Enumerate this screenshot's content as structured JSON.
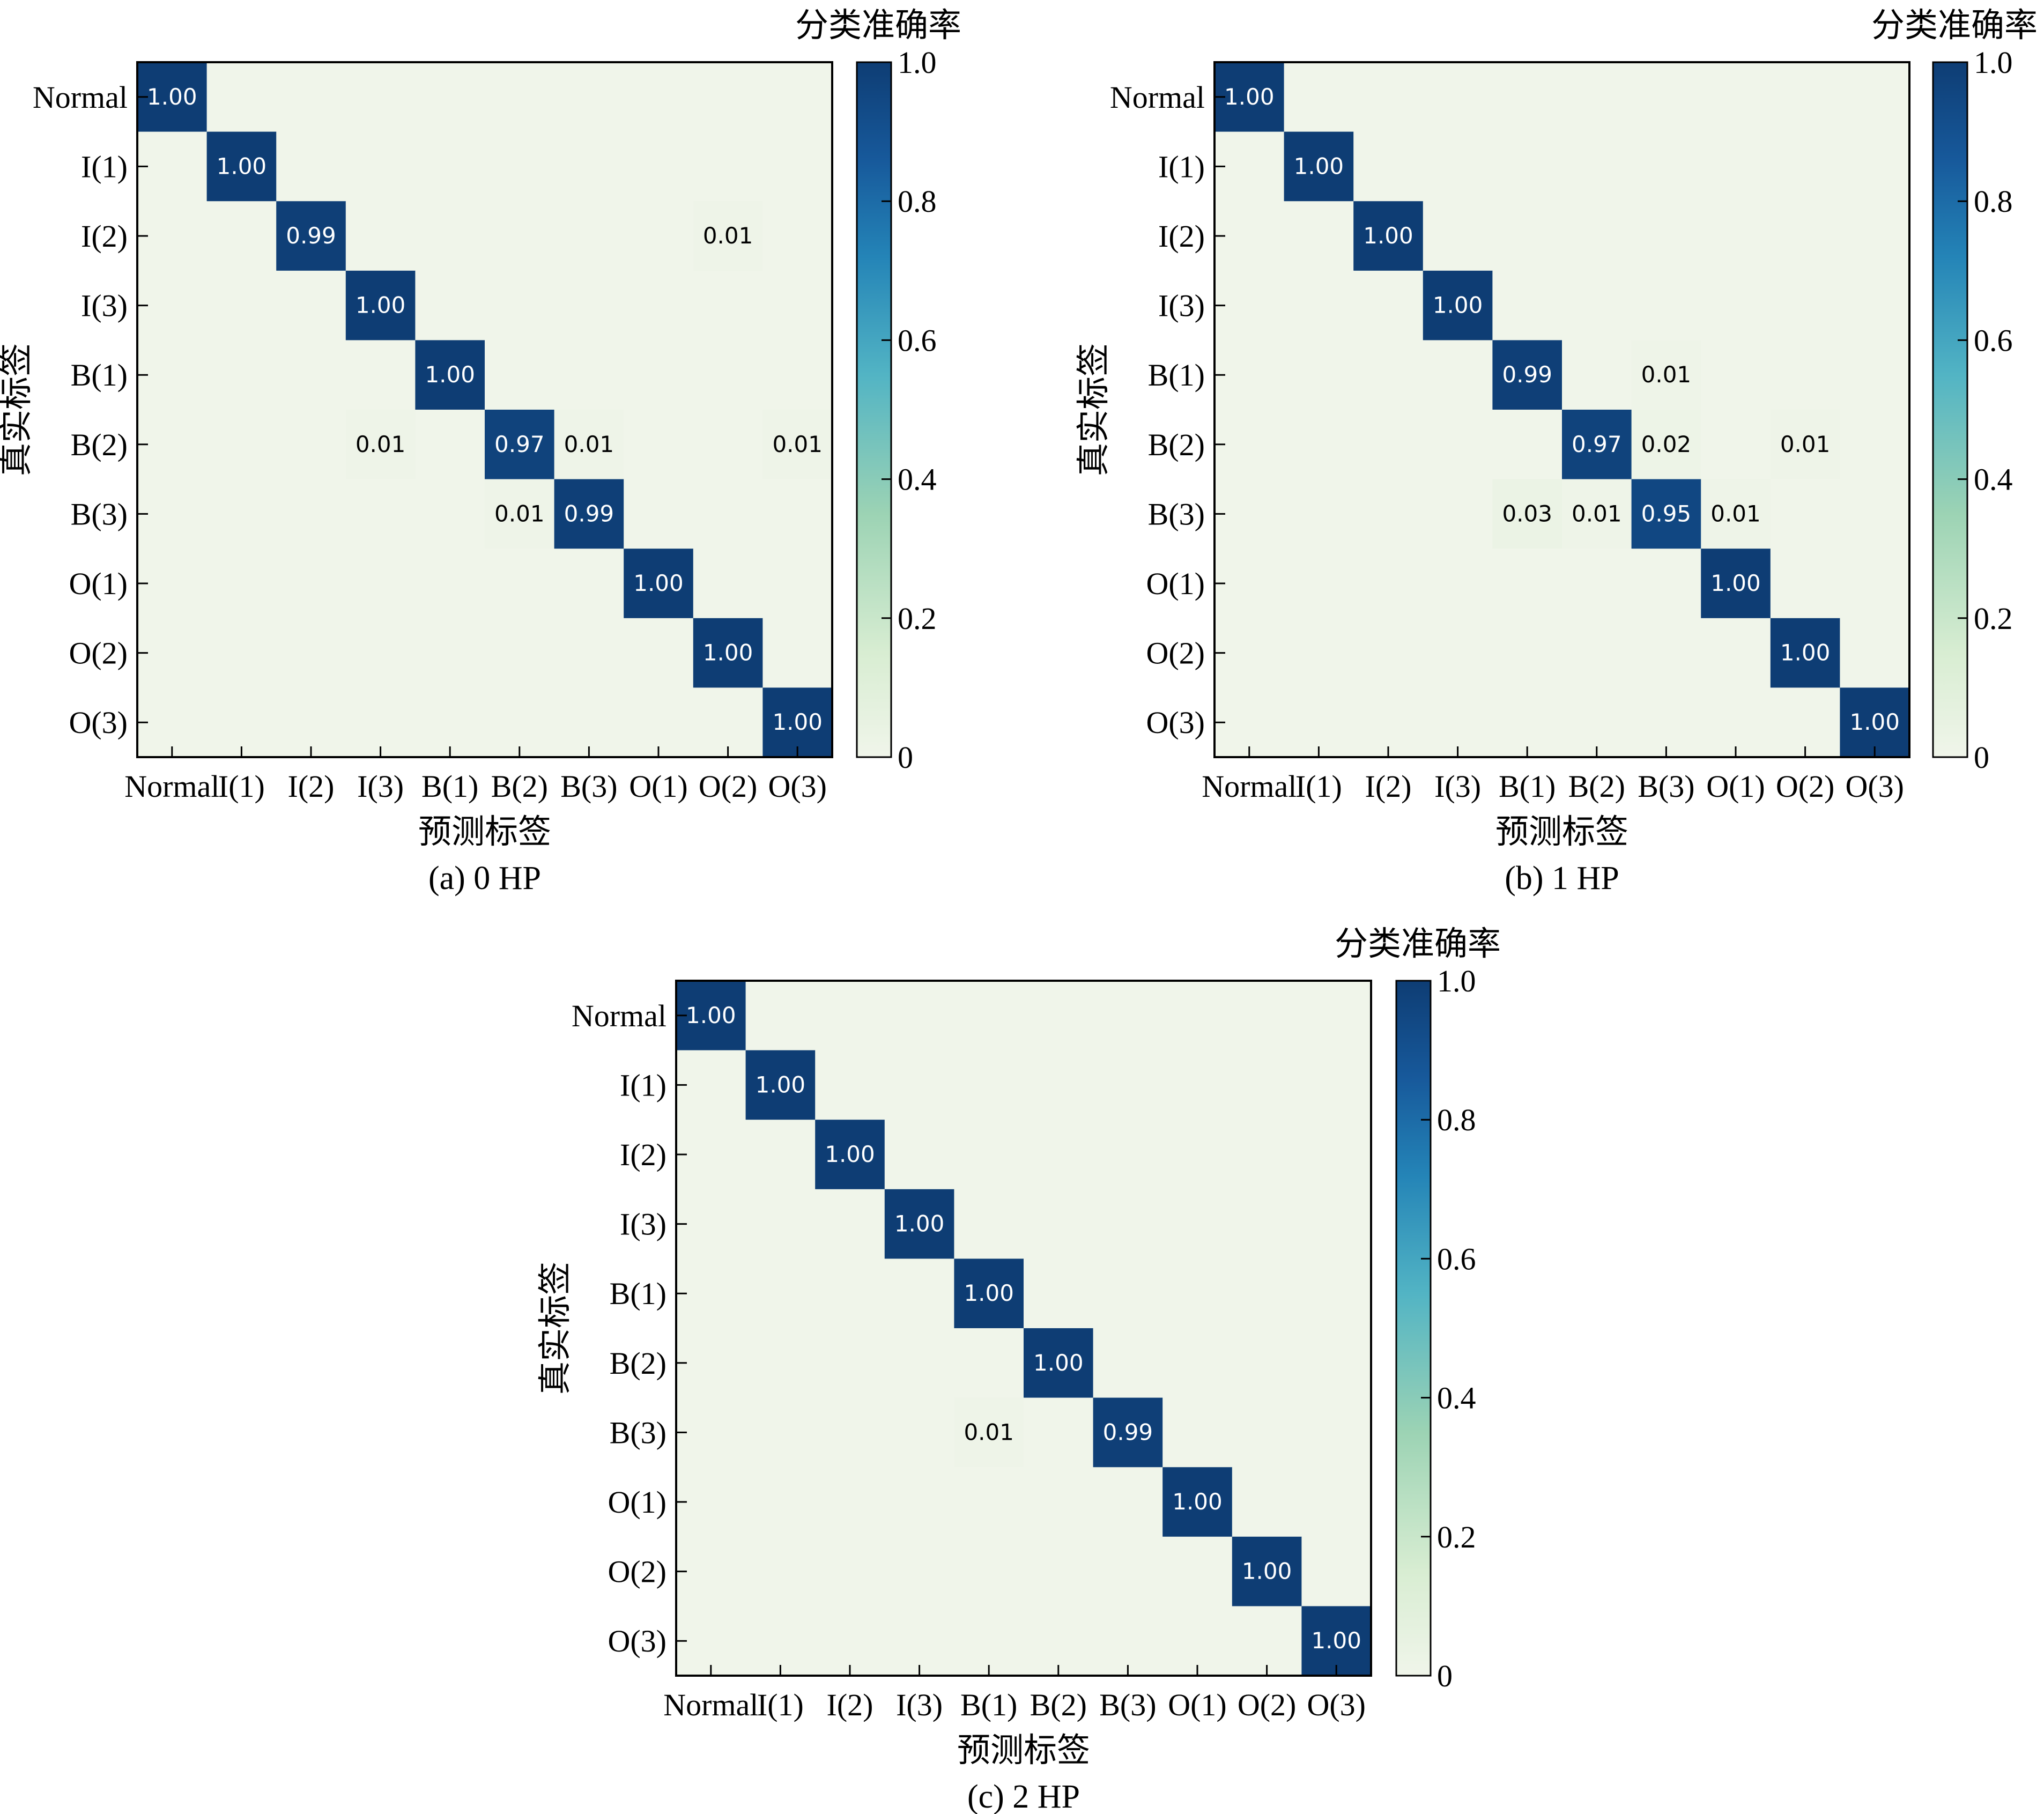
{
  "chart_data": [
    {
      "type": "heatmap",
      "panel_label": "(a)  0 HP",
      "xlabel": "预测标签",
      "ylabel": "真实标签",
      "colorbar_label": "分类准确率",
      "colorbar_ticks": [
        "0",
        "0.2",
        "0.4",
        "0.6",
        "0.8",
        "1.0"
      ],
      "vmin": 0,
      "vmax": 1,
      "x_categories": [
        "Normal",
        "I(1)",
        "I(2)",
        "I(3)",
        "B(1)",
        "B(2)",
        "B(3)",
        "O(1)",
        "O(2)",
        "O(3)"
      ],
      "y_categories": [
        "Normal",
        "I(1)",
        "I(2)",
        "I(3)",
        "B(1)",
        "B(2)",
        "B(3)",
        "O(1)",
        "O(2)",
        "O(3)"
      ],
      "values": [
        [
          1.0,
          0,
          0,
          0,
          0,
          0,
          0,
          0,
          0,
          0
        ],
        [
          0,
          1.0,
          0,
          0,
          0,
          0,
          0,
          0,
          0,
          0
        ],
        [
          0,
          0,
          0.99,
          0,
          0,
          0,
          0,
          0,
          0.01,
          0
        ],
        [
          0,
          0,
          0,
          1.0,
          0,
          0,
          0,
          0,
          0,
          0
        ],
        [
          0,
          0,
          0,
          0,
          1.0,
          0,
          0,
          0,
          0,
          0
        ],
        [
          0,
          0,
          0,
          0.01,
          0,
          0.97,
          0.01,
          0,
          0,
          0.01
        ],
        [
          0,
          0,
          0,
          0,
          0,
          0.01,
          0.99,
          0,
          0,
          0
        ],
        [
          0,
          0,
          0,
          0,
          0,
          0,
          0,
          1.0,
          0,
          0
        ],
        [
          0,
          0,
          0,
          0,
          0,
          0,
          0,
          0,
          1.0,
          0
        ],
        [
          0,
          0,
          0,
          0,
          0,
          0,
          0,
          0,
          0,
          1.0
        ]
      ],
      "value_labels": [
        [
          "1.00",
          "",
          "",
          "",
          "",
          "",
          "",
          "",
          "",
          ""
        ],
        [
          "",
          "1.00",
          "",
          "",
          "",
          "",
          "",
          "",
          "",
          ""
        ],
        [
          "",
          "",
          "0.99",
          "",
          "",
          "",
          "",
          "",
          "0.01",
          ""
        ],
        [
          "",
          "",
          "",
          "1.00",
          "",
          "",
          "",
          "",
          "",
          ""
        ],
        [
          "",
          "",
          "",
          "",
          "1.00",
          "",
          "",
          "",
          "",
          ""
        ],
        [
          "",
          "",
          "",
          "0.01",
          "",
          "0.97",
          "0.01",
          "",
          "",
          "0.01"
        ],
        [
          "",
          "",
          "",
          "",
          "",
          "0.01",
          "0.99",
          "",
          "",
          ""
        ],
        [
          "",
          "",
          "",
          "",
          "",
          "",
          "",
          "1.00",
          "",
          ""
        ],
        [
          "",
          "",
          "",
          "",
          "",
          "",
          "",
          "",
          "1.00",
          ""
        ],
        [
          "",
          "",
          "",
          "",
          "",
          "",
          "",
          "",
          "",
          "1.00"
        ]
      ]
    },
    {
      "type": "heatmap",
      "panel_label": "(b)  1 HP",
      "xlabel": "预测标签",
      "ylabel": "真实标签",
      "colorbar_label": "分类准确率",
      "colorbar_ticks": [
        "0",
        "0.2",
        "0.4",
        "0.6",
        "0.8",
        "1.0"
      ],
      "vmin": 0,
      "vmax": 1,
      "x_categories": [
        "Normal",
        "I(1)",
        "I(2)",
        "I(3)",
        "B(1)",
        "B(2)",
        "B(3)",
        "O(1)",
        "O(2)",
        "O(3)"
      ],
      "y_categories": [
        "Normal",
        "I(1)",
        "I(2)",
        "I(3)",
        "B(1)",
        "B(2)",
        "B(3)",
        "O(1)",
        "O(2)",
        "O(3)"
      ],
      "values": [
        [
          1.0,
          0,
          0,
          0,
          0,
          0,
          0,
          0,
          0,
          0
        ],
        [
          0,
          1.0,
          0,
          0,
          0,
          0,
          0,
          0,
          0,
          0
        ],
        [
          0,
          0,
          1.0,
          0,
          0,
          0,
          0,
          0,
          0,
          0
        ],
        [
          0,
          0,
          0,
          1.0,
          0,
          0,
          0,
          0,
          0,
          0
        ],
        [
          0,
          0,
          0,
          0,
          0.99,
          0,
          0.01,
          0,
          0,
          0
        ],
        [
          0,
          0,
          0,
          0,
          0,
          0.97,
          0.02,
          0,
          0.01,
          0
        ],
        [
          0,
          0,
          0,
          0,
          0.03,
          0.01,
          0.95,
          0.01,
          0,
          0
        ],
        [
          0,
          0,
          0,
          0,
          0,
          0,
          0,
          1.0,
          0,
          0
        ],
        [
          0,
          0,
          0,
          0,
          0,
          0,
          0,
          0,
          1.0,
          0
        ],
        [
          0,
          0,
          0,
          0,
          0,
          0,
          0,
          0,
          0,
          1.0
        ]
      ],
      "value_labels": [
        [
          "1.00",
          "",
          "",
          "",
          "",
          "",
          "",
          "",
          "",
          ""
        ],
        [
          "",
          "1.00",
          "",
          "",
          "",
          "",
          "",
          "",
          "",
          ""
        ],
        [
          "",
          "",
          "1.00",
          "",
          "",
          "",
          "",
          "",
          "",
          ""
        ],
        [
          "",
          "",
          "",
          "1.00",
          "",
          "",
          "",
          "",
          "",
          ""
        ],
        [
          "",
          "",
          "",
          "",
          "0.99",
          "",
          "0.01",
          "",
          "",
          ""
        ],
        [
          "",
          "",
          "",
          "",
          "",
          "0.97",
          "0.02",
          "",
          "0.01",
          ""
        ],
        [
          "",
          "",
          "",
          "",
          "0.03",
          "0.01",
          "0.95",
          "0.01",
          "",
          ""
        ],
        [
          "",
          "",
          "",
          "",
          "",
          "",
          "",
          "1.00",
          "",
          ""
        ],
        [
          "",
          "",
          "",
          "",
          "",
          "",
          "",
          "",
          "1.00",
          ""
        ],
        [
          "",
          "",
          "",
          "",
          "",
          "",
          "",
          "",
          "",
          "1.00"
        ]
      ]
    },
    {
      "type": "heatmap",
      "panel_label": "(c)  2 HP",
      "xlabel": "预测标签",
      "ylabel": "真实标签",
      "colorbar_label": "分类准确率",
      "colorbar_ticks": [
        "0",
        "0.2",
        "0.4",
        "0.6",
        "0.8",
        "1.0"
      ],
      "vmin": 0,
      "vmax": 1,
      "x_categories": [
        "Normal",
        "I(1)",
        "I(2)",
        "I(3)",
        "B(1)",
        "B(2)",
        "B(3)",
        "O(1)",
        "O(2)",
        "O(3)"
      ],
      "y_categories": [
        "Normal",
        "I(1)",
        "I(2)",
        "I(3)",
        "B(1)",
        "B(2)",
        "B(3)",
        "O(1)",
        "O(2)",
        "O(3)"
      ],
      "values": [
        [
          1.0,
          0,
          0,
          0,
          0,
          0,
          0,
          0,
          0,
          0
        ],
        [
          0,
          1.0,
          0,
          0,
          0,
          0,
          0,
          0,
          0,
          0
        ],
        [
          0,
          0,
          1.0,
          0,
          0,
          0,
          0,
          0,
          0,
          0
        ],
        [
          0,
          0,
          0,
          1.0,
          0,
          0,
          0,
          0,
          0,
          0
        ],
        [
          0,
          0,
          0,
          0,
          1.0,
          0,
          0,
          0,
          0,
          0
        ],
        [
          0,
          0,
          0,
          0,
          0,
          1.0,
          0,
          0,
          0,
          0
        ],
        [
          0,
          0,
          0,
          0,
          0.01,
          0,
          0.99,
          0,
          0,
          0
        ],
        [
          0,
          0,
          0,
          0,
          0,
          0,
          0,
          1.0,
          0,
          0
        ],
        [
          0,
          0,
          0,
          0,
          0,
          0,
          0,
          0,
          1.0,
          0
        ],
        [
          0,
          0,
          0,
          0,
          0,
          0,
          0,
          0,
          0,
          1.0
        ]
      ],
      "value_labels": [
        [
          "1.00",
          "",
          "",
          "",
          "",
          "",
          "",
          "",
          "",
          ""
        ],
        [
          "",
          "1.00",
          "",
          "",
          "",
          "",
          "",
          "",
          "",
          ""
        ],
        [
          "",
          "",
          "1.00",
          "",
          "",
          "",
          "",
          "",
          "",
          ""
        ],
        [
          "",
          "",
          "",
          "1.00",
          "",
          "",
          "",
          "",
          "",
          ""
        ],
        [
          "",
          "",
          "",
          "",
          "1.00",
          "",
          "",
          "",
          "",
          ""
        ],
        [
          "",
          "",
          "",
          "",
          "",
          "1.00",
          "",
          "",
          "",
          ""
        ],
        [
          "",
          "",
          "",
          "",
          "0.01",
          "",
          "0.99",
          "",
          "",
          ""
        ],
        [
          "",
          "",
          "",
          "",
          "",
          "",
          "",
          "1.00",
          "",
          ""
        ],
        [
          "",
          "",
          "",
          "",
          "",
          "",
          "",
          "",
          "1.00",
          ""
        ],
        [
          "",
          "",
          "",
          "",
          "",
          "",
          "",
          "",
          "",
          "1.00"
        ]
      ]
    }
  ],
  "colormap": {
    "stops": [
      "#f0f5ea",
      "#d8edd2",
      "#9cd3b4",
      "#52b4c4",
      "#2484b7",
      "#17599b",
      "#0e3d74"
    ],
    "zero_color": "#f0f5ea"
  }
}
